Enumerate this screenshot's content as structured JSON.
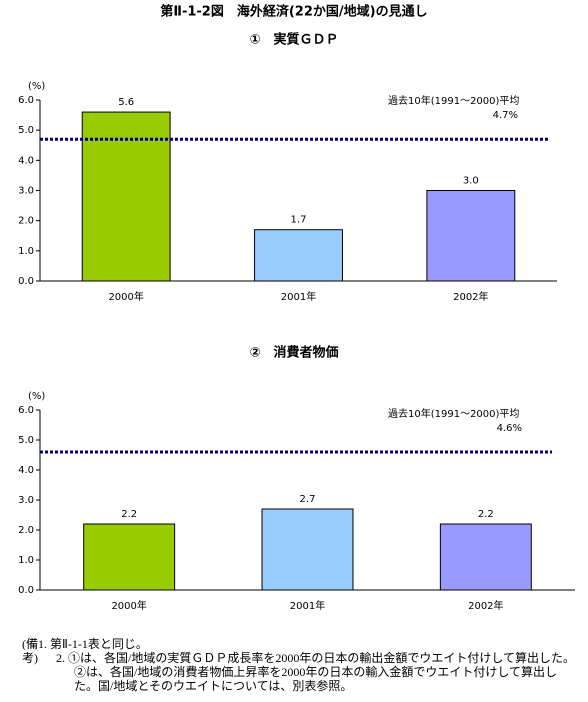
{
  "title": "第Ⅱ-1-2図　海外経済(22か国/地域)の見通し",
  "chart_data": [
    {
      "type": "bar",
      "title": "①　実質ＧＤＰ",
      "y_label": "(%)",
      "categories": [
        "2000年",
        "2001年",
        "2002年"
      ],
      "values": [
        5.6,
        1.7,
        3
      ],
      "value_labels": [
        "5.6",
        "1.7",
        "3.0"
      ],
      "colors": [
        "#99cc00",
        "#99ccff",
        "#9999ff"
      ],
      "ylim": [
        0,
        6
      ],
      "yticks": [
        {
          "value": 0,
          "label": "0.0"
        },
        {
          "value": 1,
          "label": "1.0"
        },
        {
          "value": 2,
          "label": "2.0"
        },
        {
          "value": 3,
          "label": "3.0"
        },
        {
          "value": 4,
          "label": "4.0"
        },
        {
          "value": 5,
          "label": "5.0"
        },
        {
          "value": 6,
          "label": "6.0"
        }
      ],
      "average": {
        "label": "過去10年(1991～2000)平均",
        "value": 4.7,
        "value_label": "4.7%",
        "color": "#000080"
      }
    },
    {
      "type": "bar",
      "title": "②　消費者物価",
      "y_label": "(%)",
      "categories": [
        "2000年",
        "2001年",
        "2002年"
      ],
      "values": [
        2.2,
        2.7,
        2.2
      ],
      "colors": [
        "#99cc00",
        "#99ccff",
        "#9999ff"
      ],
      "ylim": [
        0,
        6
      ],
      "yticks": [
        {
          "value": 0,
          "label": "0.0"
        },
        {
          "value": 1,
          "label": "1.0"
        },
        {
          "value": 2,
          "label": "2.0"
        },
        {
          "value": 3,
          "label": "3.0"
        },
        {
          "value": 4,
          "label": "4.0"
        },
        {
          "value": 5,
          "label": "5.0"
        },
        {
          "value": 6,
          "label": "6.0"
        }
      ],
      "average": {
        "label": "過去10年(1991～2000)平均",
        "value": 4.6,
        "value_label": "4.6%",
        "color": "#000080"
      }
    }
  ],
  "notes": {
    "heading": "(備考)",
    "items": [
      "1. 第Ⅱ-1-1表と同じ。",
      "2. ①は、各国/地域の実質ＧＤＰ成長率を2000年の日本の輸出金額でウエイト付けして算出した。②は、各国/地域の消費者物価上昇率を2000年の日本の輸入金額でウエイト付けして算出した。国/地域とそのウエイトについては、別表参照。"
    ]
  }
}
